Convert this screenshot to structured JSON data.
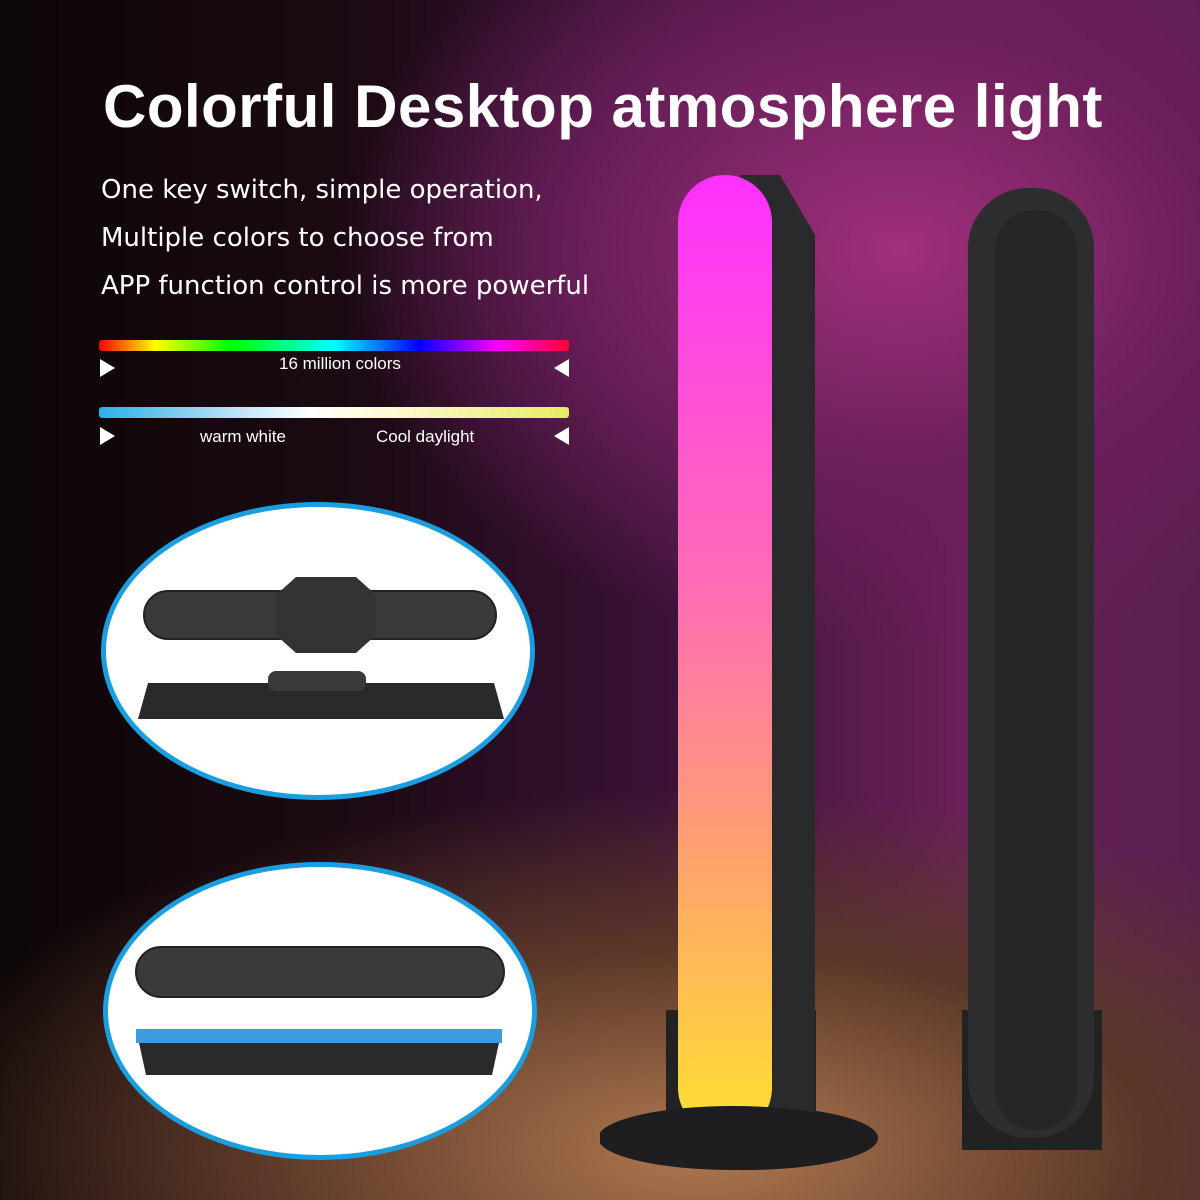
{
  "title": "Colorful Desktop atmosphere light",
  "features": [
    "One key switch, simple operation,",
    "Multiple colors to choose from",
    "APP function control is more powerful"
  ],
  "rgb_bar": {
    "label": "16 million colors"
  },
  "cct_bar": {
    "left_label": "warm white",
    "right_label": "Cool daylight"
  },
  "colors": {
    "accent_blue": "#1a9ee0",
    "lamp_glow_top": "#ff30ff",
    "lamp_glow_bottom": "#ffe030"
  }
}
